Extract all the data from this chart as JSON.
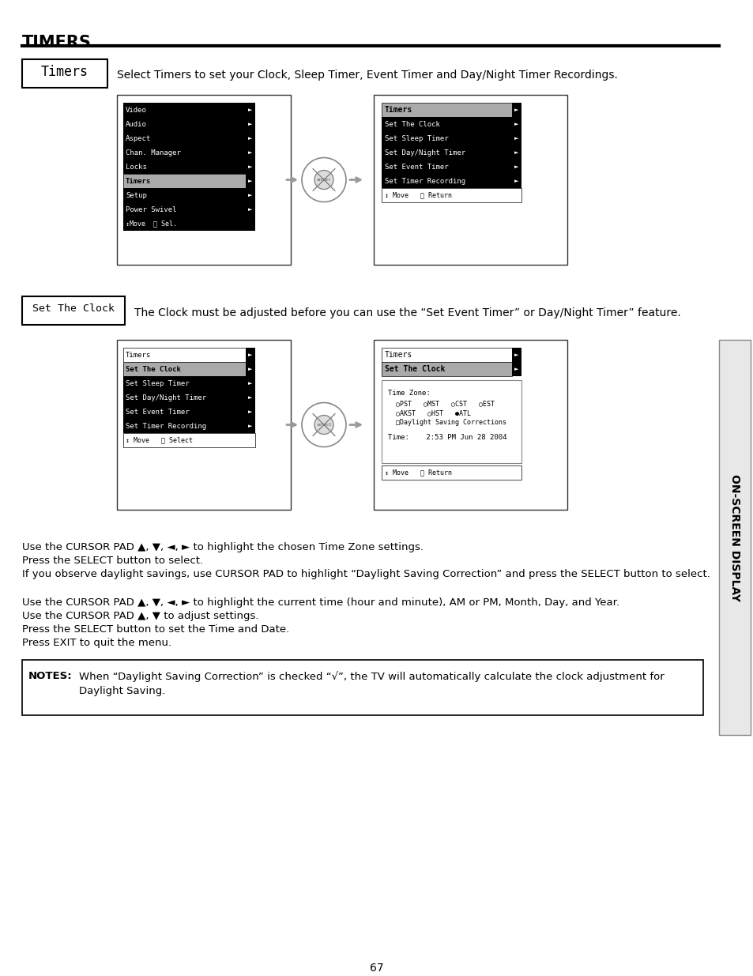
{
  "title": "TIMERS",
  "page_number": "67",
  "bg_color": "#ffffff",
  "timers_label": "Timers",
  "timers_desc": "Select Timers to set your Clock, Sleep Timer, Event Timer and Day/Night Timer Recordings.",
  "set_clock_label": "Set The Clock",
  "set_clock_desc": "The Clock must be adjusted before you can use the “Set Event Timer” or Day/Night Timer” feature.",
  "menu1_items": [
    "Video",
    "Audio",
    "Aspect",
    "Chan. Manager",
    "Locks",
    "Timers",
    "Setup",
    "Power Swivel"
  ],
  "menu1_footer": "↕Move  Ⓢ Sel.",
  "menu1_highlighted": 5,
  "menu2_title": "Timers",
  "menu2_items": [
    "Set The Clock",
    "Set Sleep Timer",
    "Set Day/Night Timer",
    "Set Event Timer",
    "Set Timer Recording"
  ],
  "menu2_footer": "↕ Move   Ⓢ Return",
  "menu3_title": "Timers",
  "menu3_items": [
    "Set The Clock",
    "Set Sleep Timer",
    "Set Day/Night Timer",
    "Set Event Timer",
    "Set Timer Recording"
  ],
  "menu3_highlighted": 0,
  "menu3_footer": "↕ Move   Ⓢ Select",
  "menu4_title": "Timers",
  "menu4_subtitle": "Set The Clock",
  "menu4_timezone_label": "Time Zone:",
  "menu4_tz_row1": "  ○PST   ○MST   ○CST   ○EST",
  "menu4_tz_row2": "  ○AKST   ○HST   ●ATL",
  "menu4_daylight": "  □Daylight Saving Corrections",
  "menu4_time": "Time:    2:53 PM Jun 28 2004",
  "menu4_footer": "↕ Move   Ⓢ Return",
  "para1_line1": "Use the CURSOR PAD ▲, ▼, ◄, ► to highlight the chosen Time Zone settings.",
  "para1_line2": "Press the SELECT button to select.",
  "para1_line3": "If you observe daylight savings, use CURSOR PAD to highlight “Daylight Saving Correction” and press the SELECT button to select.",
  "para2_line1": "Use the CURSOR PAD ▲, ▼, ◄, ► to highlight the current time (hour and minute), AM or PM, Month, Day, and Year.",
  "para2_line2": "Use the CURSOR PAD ▲, ▼ to adjust settings.",
  "para2_line3": "Press the SELECT button to set the Time and Date.",
  "para2_line4": "Press EXIT to quit the menu.",
  "notes_label": "NOTES:",
  "notes_line1": "When “Daylight Saving Correction” is checked “√”, the TV will automatically calculate the clock adjustment for",
  "notes_line2": "Daylight Saving.",
  "sidebar_text": "ON-SCREEN DISPLAY"
}
